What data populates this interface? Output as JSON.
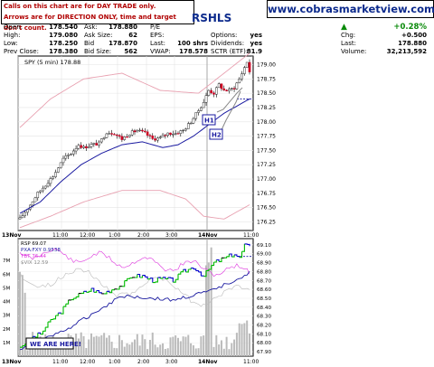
{
  "notice": {
    "line1": "Calls on this chart are for DAY TRADE only.",
    "line2": "Arrows are for DIRECTION ONLY, time and target don't count."
  },
  "ticker_fragment": "RSHLS",
  "website": "www.cobrasmarketview.com",
  "stats": {
    "open_label": "Open:",
    "open": "178.540",
    "high_label": "High:",
    "high": "179.080",
    "low_label": "Low:",
    "low": "178.250",
    "prev_close_label": "Prev Close:",
    "prev_close": "178.380",
    "ask_label": "Ask:",
    "ask": "178.880",
    "ask_size_label": "Ask Size:",
    "ask_size": "62",
    "bid_label": "Bid",
    "bid": "178.870",
    "bid_size_label": "Bid Size:",
    "bid_size": "562",
    "pe_label": "P/E",
    "pe": "",
    "eps_label": "EPS:",
    "eps": "",
    "last_label": "Last:",
    "last_trade": "100 shrs",
    "vwap_label": "VWAP:",
    "vwap": "178.578",
    "options_label": "Options:",
    "options": "yes",
    "dividends_label": "Dividends:",
    "dividends": "yes",
    "sctr_label": "SCTR (ETF):",
    "sctr": "81.9",
    "chg_pct": "+0.28%",
    "chg_label": "Chg:",
    "chg": "+0.500",
    "last2_label": "Last:",
    "last": "178.880",
    "volume_label": "Volume:",
    "volume": "32,213,592"
  },
  "colors": {
    "up": "#0a7a0a",
    "down": "#cc0022",
    "candle_outline": "#000000",
    "ma": "#1a1aa0",
    "band": "#e8a0b0",
    "target": "#1a1aa0",
    "rsp_up": "#00bb00",
    "rsp_down": "#0000cc",
    "rsp_flat": "#000000",
    "tbt": "#dd33dd",
    "vix": "#bbbbbb",
    "volume": "#bbbbbb",
    "volume_line": "#cc3333"
  },
  "chart_data": [
    {
      "type": "line",
      "title": "SPY (5 min) 178.88",
      "x_ticks": [
        "13Nov",
        "11:00",
        "12:00",
        "1:00",
        "2:00",
        "3:00",
        "14Nov",
        "11:00"
      ],
      "ylim": [
        176.1,
        179.15
      ],
      "y_ticks": [
        "179.00",
        "178.75",
        "178.50",
        "178.25",
        "178.00",
        "177.75",
        "177.50",
        "177.25",
        "177.00",
        "176.75",
        "176.50",
        "176.25"
      ],
      "y_tick_values": [
        179.0,
        178.75,
        178.5,
        178.25,
        178.0,
        177.75,
        177.5,
        177.25,
        177.0,
        176.75,
        176.5,
        176.25
      ],
      "price_path": [
        [
          0,
          176.3
        ],
        [
          4,
          176.55
        ],
        [
          7,
          176.75
        ],
        [
          10,
          176.9
        ],
        [
          13,
          177.05
        ],
        [
          17,
          177.35
        ],
        [
          20,
          177.45
        ],
        [
          23,
          177.6
        ],
        [
          25,
          177.55
        ],
        [
          28,
          177.6
        ],
        [
          31,
          177.62
        ],
        [
          34,
          177.82
        ],
        [
          37,
          177.8
        ],
        [
          40,
          177.7
        ],
        [
          43,
          177.8
        ],
        [
          46,
          177.85
        ],
        [
          49,
          177.8
        ],
        [
          52,
          177.7
        ],
        [
          55,
          177.72
        ],
        [
          58,
          177.8
        ],
        [
          61,
          177.8
        ],
        [
          64,
          177.85
        ],
        [
          67,
          178.0
        ],
        [
          70,
          178.2
        ],
        [
          72,
          178.35
        ],
        [
          74,
          178.55
        ],
        [
          76,
          178.5
        ],
        [
          78,
          178.65
        ],
        [
          80,
          178.55
        ],
        [
          82,
          178.55
        ],
        [
          84,
          178.6
        ],
        [
          86,
          178.75
        ],
        [
          87,
          178.85
        ],
        [
          88,
          178.95
        ],
        [
          89,
          179.05
        ],
        [
          90,
          178.88
        ]
      ],
      "ma_path": [
        [
          0,
          176.4
        ],
        [
          8,
          176.6
        ],
        [
          16,
          176.95
        ],
        [
          24,
          177.25
        ],
        [
          32,
          177.45
        ],
        [
          40,
          177.6
        ],
        [
          48,
          177.65
        ],
        [
          56,
          177.55
        ],
        [
          62,
          177.6
        ],
        [
          68,
          177.75
        ],
        [
          74,
          177.95
        ],
        [
          80,
          178.15
        ],
        [
          86,
          178.3
        ],
        [
          90,
          178.4
        ]
      ],
      "band_upper": [
        [
          0,
          177.9
        ],
        [
          12,
          178.4
        ],
        [
          25,
          178.75
        ],
        [
          40,
          178.85
        ],
        [
          55,
          178.55
        ],
        [
          70,
          178.5
        ],
        [
          80,
          178.85
        ],
        [
          90,
          179.2
        ]
      ],
      "band_lower": [
        [
          0,
          176.15
        ],
        [
          12,
          176.35
        ],
        [
          25,
          176.6
        ],
        [
          40,
          176.8
        ],
        [
          55,
          176.8
        ],
        [
          65,
          176.65
        ],
        [
          72,
          176.35
        ],
        [
          80,
          176.3
        ],
        [
          90,
          176.55
        ]
      ],
      "target_level": 178.4,
      "annotations": [
        {
          "label": "H1"
        },
        {
          "label": "H2"
        }
      ]
    },
    {
      "type": "line",
      "legend": [
        "RSP 69.07",
        "PXA:FXY 0.9538",
        "TBT 76.44",
        "$VIX 12.59"
      ],
      "x_ticks": [
        "13Nov",
        "11:00",
        "12:00",
        "1:00",
        "2:00",
        "3:00",
        "14Nov",
        "11:00"
      ],
      "right_axis_ticks": [
        "69.10",
        "69.00",
        "68.90",
        "68.80",
        "68.70",
        "68.60",
        "68.50",
        "68.40",
        "68.30",
        "68.20",
        "68.10",
        "68.00",
        "67.90"
      ],
      "right_axis_values": [
        69.1,
        69.0,
        68.9,
        68.8,
        68.7,
        68.6,
        68.5,
        68.4,
        68.3,
        68.2,
        68.1,
        68.0,
        67.9
      ],
      "right_ylim": [
        67.85,
        69.17
      ],
      "left_axis_ticks": [
        "7M",
        "6M",
        "5M",
        "4M",
        "3M",
        "2M",
        "1M"
      ],
      "left_axis_values": [
        7,
        6,
        5,
        4,
        3,
        2,
        1
      ],
      "left_ylim": [
        0,
        8.6
      ],
      "target_level": 68.97,
      "rsp_path": [
        [
          0,
          67.95
        ],
        [
          4,
          68.05
        ],
        [
          8,
          68.1
        ],
        [
          12,
          68.25
        ],
        [
          16,
          68.35
        ],
        [
          20,
          68.5
        ],
        [
          24,
          68.55
        ],
        [
          28,
          68.6
        ],
        [
          32,
          68.55
        ],
        [
          36,
          68.6
        ],
        [
          40,
          68.65
        ],
        [
          44,
          68.75
        ],
        [
          48,
          68.75
        ],
        [
          52,
          68.7
        ],
        [
          56,
          68.72
        ],
        [
          60,
          68.7
        ],
        [
          64,
          68.8
        ],
        [
          68,
          68.85
        ],
        [
          72,
          68.75
        ],
        [
          76,
          68.9
        ],
        [
          80,
          68.95
        ],
        [
          84,
          69.0
        ],
        [
          86,
          68.95
        ],
        [
          88,
          69.1
        ],
        [
          90,
          69.07
        ]
      ],
      "callout": "WE ARE HERE!"
    }
  ]
}
